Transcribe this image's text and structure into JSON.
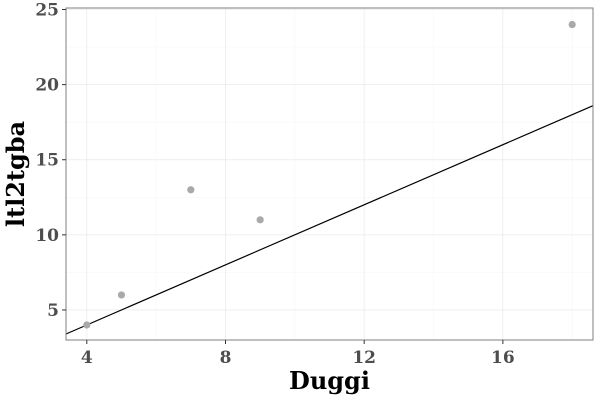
{
  "chart_data": {
    "type": "scatter",
    "title": "",
    "xlabel": "Duggi",
    "ylabel": "ltl2tgba",
    "xlim": [
      3.4,
      18.6
    ],
    "ylim": [
      3.0,
      25.1
    ],
    "x_ticks": [
      4,
      8,
      12,
      16
    ],
    "y_ticks": [
      5,
      10,
      15,
      20,
      25
    ],
    "grid": true,
    "points": [
      {
        "x": 4,
        "y": 4
      },
      {
        "x": 5,
        "y": 6
      },
      {
        "x": 7,
        "y": 13
      },
      {
        "x": 9,
        "y": 11
      },
      {
        "x": 18,
        "y": 24
      }
    ],
    "reference_line": {
      "slope": 1,
      "intercept": 0
    },
    "point_color": "#a9a9a9",
    "line_color": "#000000"
  }
}
